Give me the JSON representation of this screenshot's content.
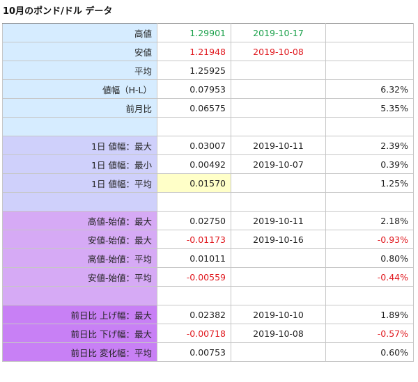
{
  "title": "10月のポンド/ドル データ",
  "colors": {
    "section_a": "#d6ecff",
    "section_b": "#cfd0fb",
    "section_c": "#d6aaf5",
    "section_d": "#c880f5",
    "highlight": "#ffffc8",
    "green": "#1aa04a",
    "red": "#e0181e"
  },
  "rows": [
    {
      "label": "高値",
      "value": "1.29901",
      "date": "2019-10-17",
      "pct": ""
    },
    {
      "label": "安値",
      "value": "1.21948",
      "date": "2019-10-08",
      "pct": ""
    },
    {
      "label": "平均",
      "value": "1.25925",
      "date": "",
      "pct": ""
    },
    {
      "label": "値幅（H-L）",
      "value": "0.07953",
      "date": "",
      "pct": "6.32%"
    },
    {
      "label": "前月比",
      "value": "0.06575",
      "date": "",
      "pct": "5.35%"
    },
    {
      "label": "",
      "value": "",
      "date": "",
      "pct": ""
    },
    {
      "label": "1日 値幅：最大",
      "value": "0.03007",
      "date": "2019-10-11",
      "pct": "2.39%"
    },
    {
      "label": "1日 値幅：最小",
      "value": "0.00492",
      "date": "2019-10-07",
      "pct": "0.39%"
    },
    {
      "label": "1日 値幅：平均",
      "value": "0.01570",
      "date": "",
      "pct": "1.25%"
    },
    {
      "label": "",
      "value": "",
      "date": "",
      "pct": ""
    },
    {
      "label": "高値-始値：最大",
      "value": "0.02750",
      "date": "2019-10-11",
      "pct": "2.18%"
    },
    {
      "label": "安値-始値：最大",
      "value": "-0.01173",
      "date": "2019-10-16",
      "pct": "-0.93%"
    },
    {
      "label": "高値-始値：平均",
      "value": "0.01011",
      "date": "",
      "pct": "0.80%"
    },
    {
      "label": "安値-始値：平均",
      "value": "-0.00559",
      "date": "",
      "pct": "-0.44%"
    },
    {
      "label": "",
      "value": "",
      "date": "",
      "pct": ""
    },
    {
      "label": "前日比 上げ幅：最大",
      "value": "0.02382",
      "date": "2019-10-10",
      "pct": "1.89%"
    },
    {
      "label": "前日比 下げ幅：最大",
      "value": "-0.00718",
      "date": "2019-10-08",
      "pct": "-0.57%"
    },
    {
      "label": "前日比 変化幅：平均",
      "value": "0.00753",
      "date": "",
      "pct": "0.60%"
    }
  ]
}
